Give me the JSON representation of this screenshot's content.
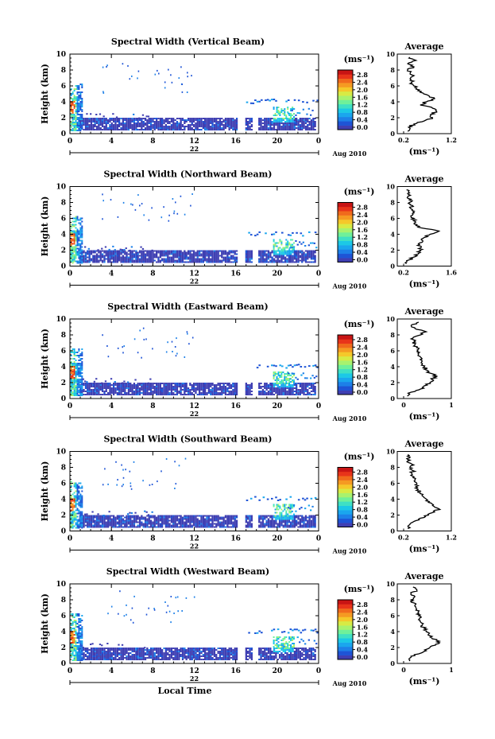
{
  "colors": {
    "scale": [
      "#3f3fb2",
      "#1e54d6",
      "#1d80e8",
      "#1aa6ee",
      "#1cc8e6",
      "#3fe0c4",
      "#6ff09a",
      "#a8f26e",
      "#d8ea44",
      "#f5c82a",
      "#f59a22",
      "#f06a1c",
      "#e8341a",
      "#c81414"
    ],
    "average_line": "#000000",
    "axis": "#000000"
  },
  "xlabel_common": "Local Time",
  "chart_data": [
    {
      "type": "heatmap",
      "title": "Spectral Width (Vertical Beam)",
      "ylabel": "Height (km)",
      "ylim": [
        0,
        10
      ],
      "yticks": [
        "0",
        "2",
        "4",
        "6",
        "8",
        "10"
      ],
      "xlim": [
        0,
        24
      ],
      "xticks": [
        "0",
        "4",
        "8",
        "12",
        "16",
        "20",
        "0"
      ],
      "date_day": "22",
      "date_month": "Aug 2010",
      "colorbar": {
        "unit": "(ms⁻¹)",
        "labels": [
          "0.0",
          "0.4",
          "0.8",
          "1.2",
          "1.6",
          "2.0",
          "2.4",
          "2.8"
        ]
      },
      "average": {
        "title": "Average",
        "xlabel": "(ms⁻¹)",
        "xticks": [
          "0.2",
          "1.2"
        ],
        "xlim": [
          0.2,
          1.2
        ],
        "yticks": [
          "0",
          "2",
          "4",
          "6",
          "8",
          "10"
        ],
        "profile": [
          [
            0.3,
            0.3
          ],
          [
            0.32,
            0.8
          ],
          [
            0.45,
            1.2
          ],
          [
            0.7,
            1.6
          ],
          [
            0.9,
            2.0
          ],
          [
            0.85,
            2.4
          ],
          [
            1.0,
            2.8
          ],
          [
            0.9,
            3.2
          ],
          [
            0.6,
            3.6
          ],
          [
            0.75,
            4.0
          ],
          [
            0.95,
            4.4
          ],
          [
            0.8,
            4.8
          ],
          [
            0.6,
            5.2
          ],
          [
            0.5,
            5.6
          ],
          [
            0.45,
            6.0
          ],
          [
            0.4,
            6.4
          ],
          [
            0.38,
            6.8
          ],
          [
            0.42,
            7.2
          ],
          [
            0.36,
            7.6
          ],
          [
            0.3,
            8.0
          ],
          [
            0.45,
            8.4
          ],
          [
            0.3,
            8.8
          ],
          [
            0.5,
            9.2
          ],
          [
            0.35,
            9.6
          ]
        ]
      }
    },
    {
      "type": "heatmap",
      "title": "Spectral Width (Northward Beam)",
      "ylabel": "Height (km)",
      "ylim": [
        0,
        10
      ],
      "yticks": [
        "0",
        "2",
        "4",
        "6",
        "8",
        "10"
      ],
      "xlim": [
        0,
        24
      ],
      "xticks": [
        "0",
        "4",
        "8",
        "12",
        "16",
        "20",
        "0"
      ],
      "date_day": "22",
      "date_month": "Aug 2010",
      "colorbar": {
        "unit": "(ms⁻¹)",
        "labels": [
          "0.0",
          "0.4",
          "0.8",
          "1.2",
          "1.6",
          "2.0",
          "2.4",
          "2.8"
        ]
      },
      "average": {
        "title": "Average",
        "xlabel": "(ms⁻¹)",
        "xticks": [
          "0.2",
          "1.6"
        ],
        "xlim": [
          0.2,
          1.6
        ],
        "yticks": [
          "0",
          "2",
          "4",
          "6",
          "8",
          "10"
        ],
        "profile": [
          [
            0.3,
            0.3
          ],
          [
            0.4,
            0.8
          ],
          [
            0.6,
            1.2
          ],
          [
            0.7,
            1.6
          ],
          [
            0.75,
            2.0
          ],
          [
            0.8,
            2.4
          ],
          [
            0.7,
            2.8
          ],
          [
            0.85,
            3.2
          ],
          [
            0.9,
            3.6
          ],
          [
            1.1,
            4.0
          ],
          [
            1.4,
            4.4
          ],
          [
            0.8,
            4.8
          ],
          [
            0.65,
            5.2
          ],
          [
            0.6,
            5.6
          ],
          [
            0.55,
            6.0
          ],
          [
            0.5,
            6.4
          ],
          [
            0.52,
            6.8
          ],
          [
            0.45,
            7.2
          ],
          [
            0.5,
            7.6
          ],
          [
            0.4,
            8.0
          ],
          [
            0.45,
            8.4
          ],
          [
            0.35,
            8.8
          ],
          [
            0.4,
            9.2
          ],
          [
            0.3,
            9.6
          ]
        ]
      }
    },
    {
      "type": "heatmap",
      "title": "Spectral Width (Eastward Beam)",
      "ylabel": "Height (km)",
      "ylim": [
        0,
        10
      ],
      "yticks": [
        "0",
        "2",
        "4",
        "6",
        "8",
        "10"
      ],
      "xlim": [
        0,
        24
      ],
      "xticks": [
        "0",
        "4",
        "8",
        "12",
        "16",
        "20",
        "0"
      ],
      "date_day": "22",
      "date_month": "Aug 2010",
      "colorbar": {
        "unit": "(ms⁻¹)",
        "labels": [
          "0.0",
          "0.4",
          "0.8",
          "1.2",
          "1.6",
          "2.0",
          "2.4",
          "2.8"
        ]
      },
      "average": {
        "title": "Average",
        "xlabel": "(ms⁻¹)",
        "xticks": [
          "0",
          "1"
        ],
        "xlim": [
          0,
          1.1
        ],
        "yticks": [
          "0",
          "2",
          "4",
          "6",
          "8",
          "10"
        ],
        "profile": [
          [
            0.1,
            0.3
          ],
          [
            0.2,
            0.8
          ],
          [
            0.45,
            1.2
          ],
          [
            0.55,
            1.6
          ],
          [
            0.7,
            2.0
          ],
          [
            0.75,
            2.4
          ],
          [
            0.9,
            2.8
          ],
          [
            0.7,
            3.2
          ],
          [
            0.6,
            3.6
          ],
          [
            0.55,
            4.0
          ],
          [
            0.5,
            4.4
          ],
          [
            0.48,
            4.8
          ],
          [
            0.45,
            5.2
          ],
          [
            0.4,
            5.6
          ],
          [
            0.38,
            6.0
          ],
          [
            0.35,
            6.4
          ],
          [
            0.3,
            6.8
          ],
          [
            0.28,
            7.2
          ],
          [
            0.25,
            7.6
          ],
          [
            0.45,
            8.0
          ],
          [
            0.6,
            8.4
          ],
          [
            0.3,
            8.8
          ],
          [
            0.2,
            9.2
          ],
          [
            0.4,
            9.6
          ]
        ]
      }
    },
    {
      "type": "heatmap",
      "title": "Spectral Width (Southward Beam)",
      "ylabel": "Height (km)",
      "ylim": [
        0,
        10
      ],
      "yticks": [
        "0",
        "2",
        "4",
        "6",
        "8",
        "10"
      ],
      "xlim": [
        0,
        24
      ],
      "xticks": [
        "0",
        "4",
        "8",
        "12",
        "16",
        "20",
        "0"
      ],
      "date_day": "22",
      "date_month": "Aug 2010",
      "colorbar": {
        "unit": "(ms⁻¹)",
        "labels": [
          "0.0",
          "0.4",
          "0.8",
          "1.2",
          "1.6",
          "2.0",
          "2.4",
          "2.8"
        ]
      },
      "average": {
        "title": "Average",
        "xlabel": "(ms⁻¹)",
        "xticks": [
          "0.2",
          "1.2"
        ],
        "xlim": [
          0.2,
          1.2
        ],
        "yticks": [
          "0",
          "2",
          "4",
          "6",
          "8",
          "10"
        ],
        "profile": [
          [
            0.3,
            0.3
          ],
          [
            0.35,
            0.8
          ],
          [
            0.45,
            1.2
          ],
          [
            0.6,
            1.6
          ],
          [
            0.8,
            2.0
          ],
          [
            0.95,
            2.4
          ],
          [
            1.05,
            2.8
          ],
          [
            0.9,
            3.2
          ],
          [
            0.8,
            3.6
          ],
          [
            0.75,
            4.0
          ],
          [
            0.65,
            4.4
          ],
          [
            0.6,
            4.8
          ],
          [
            0.55,
            5.2
          ],
          [
            0.5,
            5.6
          ],
          [
            0.52,
            6.0
          ],
          [
            0.48,
            6.4
          ],
          [
            0.45,
            6.8
          ],
          [
            0.4,
            7.2
          ],
          [
            0.42,
            7.6
          ],
          [
            0.35,
            8.0
          ],
          [
            0.4,
            8.4
          ],
          [
            0.3,
            8.8
          ],
          [
            0.35,
            9.2
          ],
          [
            0.3,
            9.6
          ]
        ]
      }
    },
    {
      "type": "heatmap",
      "title": "Spectral Width (Westward Beam)",
      "ylabel": "Height (km)",
      "ylim": [
        0,
        10
      ],
      "yticks": [
        "0",
        "2",
        "4",
        "6",
        "8",
        "10"
      ],
      "xlim": [
        0,
        24
      ],
      "xticks": [
        "0",
        "4",
        "8",
        "12",
        "16",
        "20",
        "0"
      ],
      "date_day": "22",
      "date_month": "Aug 2010",
      "colorbar": {
        "unit": "(ms⁻¹)",
        "labels": [
          "0.0",
          "0.4",
          "0.8",
          "1.2",
          "1.6",
          "2.0",
          "2.4",
          "2.8"
        ]
      },
      "average": {
        "title": "Average",
        "xlabel": "(ms⁻¹)",
        "xticks": [
          "0",
          "1"
        ],
        "xlim": [
          0,
          1.1
        ],
        "yticks": [
          "0",
          "2",
          "4",
          "6",
          "8",
          "10"
        ],
        "profile": [
          [
            0.15,
            0.3
          ],
          [
            0.2,
            0.8
          ],
          [
            0.4,
            1.2
          ],
          [
            0.6,
            1.6
          ],
          [
            0.7,
            2.0
          ],
          [
            0.85,
            2.4
          ],
          [
            0.95,
            2.8
          ],
          [
            0.75,
            3.2
          ],
          [
            0.65,
            3.6
          ],
          [
            0.6,
            4.0
          ],
          [
            0.55,
            4.4
          ],
          [
            0.5,
            4.8
          ],
          [
            0.45,
            5.2
          ],
          [
            0.42,
            5.6
          ],
          [
            0.4,
            6.0
          ],
          [
            0.38,
            6.4
          ],
          [
            0.35,
            6.8
          ],
          [
            0.3,
            7.2
          ],
          [
            0.28,
            7.6
          ],
          [
            0.2,
            8.0
          ],
          [
            0.3,
            8.4
          ],
          [
            0.2,
            8.8
          ],
          [
            0.35,
            9.2
          ],
          [
            0.25,
            9.6
          ]
        ]
      }
    }
  ]
}
